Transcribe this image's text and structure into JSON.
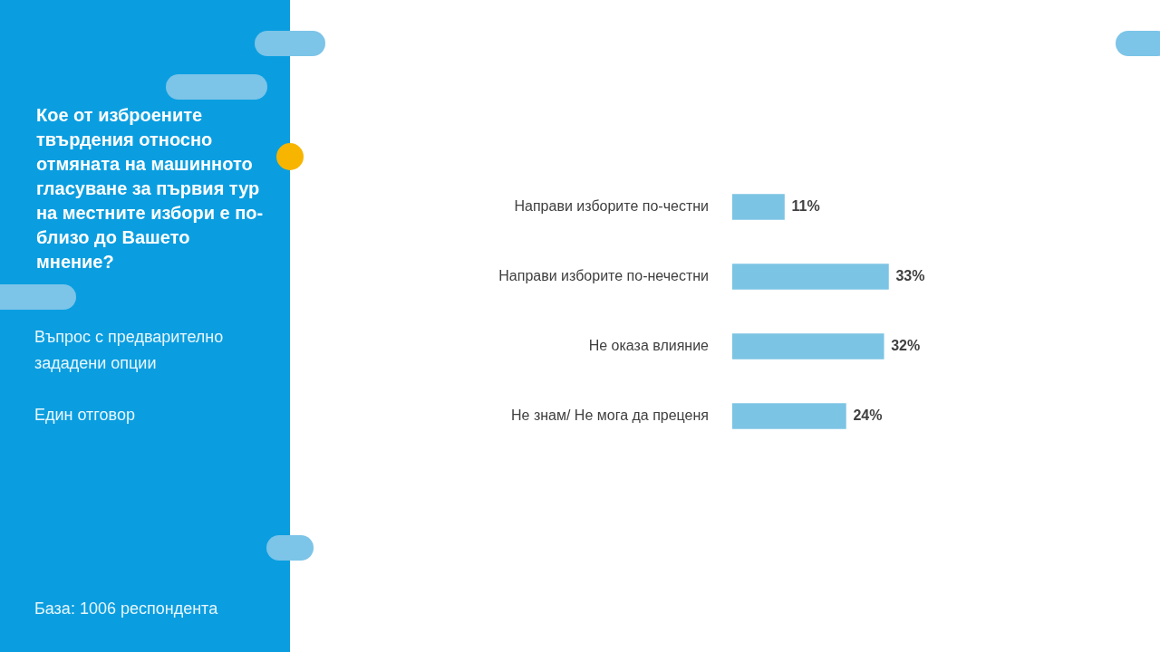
{
  "chart_data": {
    "type": "bar",
    "orientation": "horizontal",
    "title": "Кое от изброените твърдения относно отмяната на машинното гласуване за първия тур на местните избори е по-близо до Вашето мнение?",
    "subtitle": "Въпрос с предварително зададени опции",
    "annotations": [
      "Един отговор",
      "База:  1006 респондента"
    ],
    "categories": [
      "Направи изборите по-честни",
      "Направи изборите по-нечестни",
      "Не оказа влияние",
      "Не знам/ Не мога да преценя"
    ],
    "values": [
      11,
      33,
      32,
      24
    ],
    "color": "#7cc4e4",
    "value_labels": [
      "11%",
      "33%",
      "32%",
      "24%"
    ],
    "grid": false,
    "tick_labels": "y"
  }
}
